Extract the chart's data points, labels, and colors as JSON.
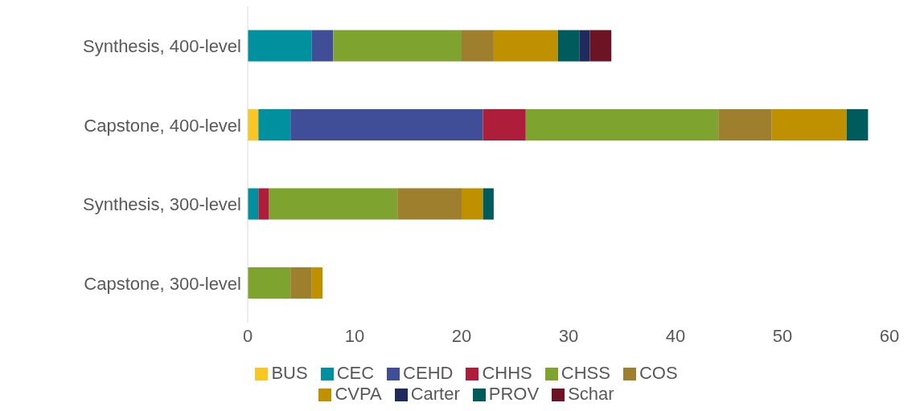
{
  "chart_data": {
    "type": "bar",
    "orientation": "horizontal",
    "stacked": true,
    "categories": [
      "Synthesis, 400-level",
      "Capstone, 400-level",
      "Synthesis, 300-level",
      "Capstone, 300-level"
    ],
    "series": [
      {
        "name": "BUS",
        "color": "#f9c623",
        "values": [
          null,
          1,
          null,
          null
        ]
      },
      {
        "name": "CEC",
        "color": "#00909e",
        "values": [
          6,
          3,
          1,
          null
        ]
      },
      {
        "name": "CEHD",
        "color": "#3f4e96",
        "values": [
          2,
          18,
          null,
          null
        ]
      },
      {
        "name": "CHHS",
        "color": "#ae1e3b",
        "values": [
          null,
          4,
          1,
          null
        ]
      },
      {
        "name": "CHSS",
        "color": "#7ea42f",
        "values": [
          12,
          18,
          12,
          4
        ]
      },
      {
        "name": "COS",
        "color": "#9e7f2e",
        "values": [
          3,
          5,
          6,
          2
        ]
      },
      {
        "name": "CVPA",
        "color": "#bf9000",
        "values": [
          6,
          7,
          2,
          1
        ]
      },
      {
        "name": "PROV",
        "color": "#005c5c",
        "values": [
          2,
          2,
          1,
          null
        ]
      },
      {
        "name": "Carter",
        "color": "#1e2b5c",
        "values": [
          1,
          null,
          null,
          null
        ]
      },
      {
        "name": "Schar",
        "color": "#6d1424",
        "values": [
          2,
          null,
          null,
          null
        ]
      }
    ],
    "xlim": [
      0,
      60
    ],
    "xticks": [
      0,
      10,
      20,
      30,
      40,
      50,
      60
    ],
    "grid": false,
    "legend": "bottom"
  }
}
